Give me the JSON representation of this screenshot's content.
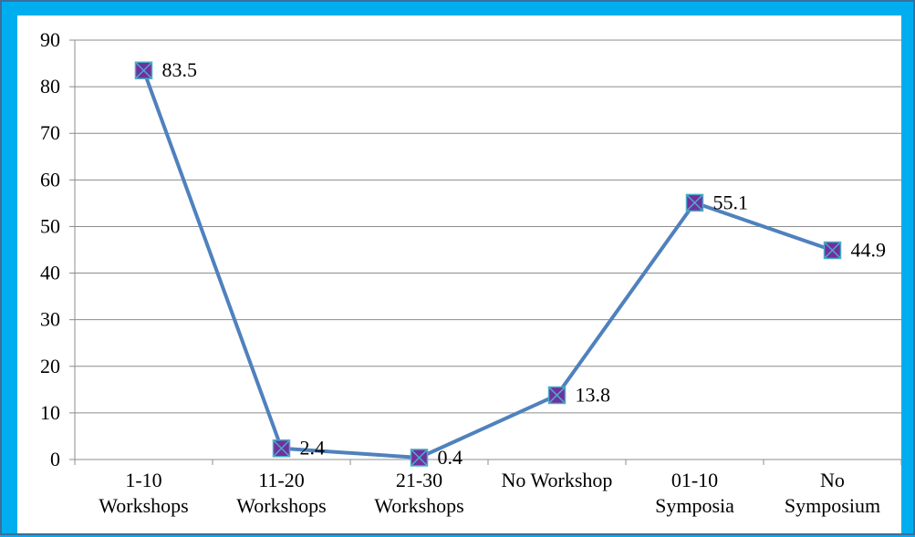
{
  "chart_data": {
    "type": "line",
    "title": "",
    "xlabel": "",
    "ylabel": "",
    "categories": [
      [
        "1-10",
        "Workshops"
      ],
      [
        "11-20",
        "Workshops"
      ],
      [
        "21-30",
        "Workshops"
      ],
      [
        "No Workshop"
      ],
      [
        "01-10",
        "Symposia"
      ],
      [
        "No",
        "Symposium"
      ]
    ],
    "series": [
      {
        "values": [
          83.5,
          2.4,
          0.4,
          13.8,
          55.1,
          44.9
        ]
      }
    ],
    "data_labels": [
      "83.5",
      "2.4",
      "0.4",
      "13.8",
      "55.1",
      "44.9"
    ],
    "y_ticks": [
      "0",
      "10",
      "20",
      "30",
      "40",
      "50",
      "60",
      "70",
      "80",
      "90"
    ],
    "ylim": [
      0,
      90
    ],
    "grid": true,
    "legend": "none",
    "colors": {
      "background": "#00AEEF",
      "plot_area": "#FFFFFF",
      "line": "#4F81BD",
      "marker_fill": "#7030A0",
      "marker_edge": "#4BACC6",
      "gridline": "#8C8C8C"
    }
  }
}
